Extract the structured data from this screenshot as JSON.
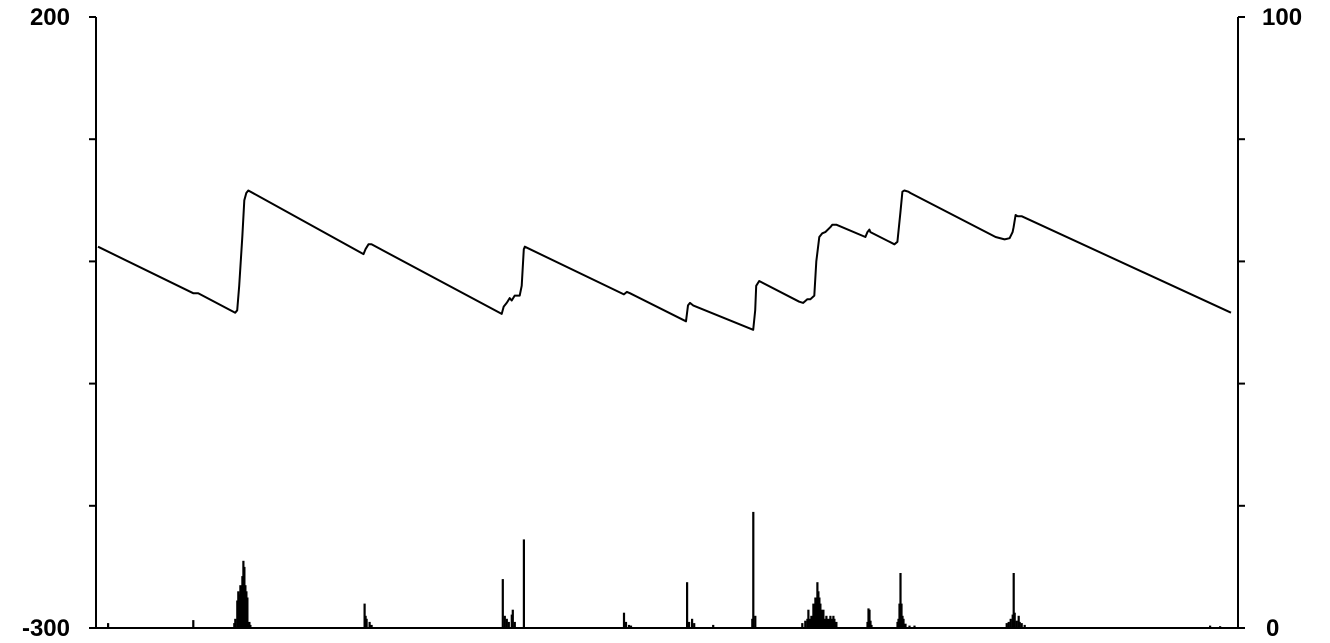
{
  "chart_data": {
    "type": "line",
    "grid": false,
    "legend": "none",
    "title": "",
    "xlabel": "",
    "x_ticks_shown": false,
    "left_axis": {
      "ylim": [
        -300,
        200
      ],
      "ticks": [
        -300,
        -200,
        -100,
        0,
        100,
        200
      ],
      "labels_shown": [
        "-300",
        "200"
      ]
    },
    "right_axis": {
      "ylim": [
        0,
        100
      ],
      "ticks": [
        0,
        20,
        40,
        60,
        80,
        100
      ],
      "labels_shown": [
        "0",
        "100"
      ]
    },
    "xlim": [
      0,
      1131
    ],
    "series": [
      {
        "axis": "left",
        "style": "line",
        "color": "#000000",
        "points": [
          [
            0,
            12
          ],
          [
            95,
            -26
          ],
          [
            100,
            -26
          ],
          [
            137,
            -42
          ],
          [
            139,
            -40
          ],
          [
            141,
            -20
          ],
          [
            144,
            20
          ],
          [
            146,
            50
          ],
          [
            148,
            56
          ],
          [
            150,
            58
          ],
          [
            265,
            6
          ],
          [
            267,
            10
          ],
          [
            270,
            14
          ],
          [
            273,
            14
          ],
          [
            403,
            -43
          ],
          [
            405,
            -37
          ],
          [
            408,
            -34
          ],
          [
            411,
            -30
          ],
          [
            413,
            -32
          ],
          [
            416,
            -28
          ],
          [
            419,
            -28
          ],
          [
            421,
            -28
          ],
          [
            423,
            -20
          ],
          [
            425,
            10
          ],
          [
            426,
            12
          ],
          [
            525,
            -27
          ],
          [
            528,
            -25
          ],
          [
            531,
            -26
          ],
          [
            587,
            -49
          ],
          [
            589,
            -36
          ],
          [
            591,
            -34
          ],
          [
            594,
            -36
          ],
          [
            654,
            -56
          ],
          [
            656,
            -40
          ],
          [
            657,
            -20
          ],
          [
            660,
            -16
          ],
          [
            700,
            -33
          ],
          [
            704,
            -34
          ],
          [
            708,
            -31
          ],
          [
            711,
            -31
          ],
          [
            715,
            -28
          ],
          [
            717,
            0
          ],
          [
            720,
            20
          ],
          [
            723,
            23
          ],
          [
            726,
            24
          ],
          [
            731,
            28
          ],
          [
            733,
            30
          ],
          [
            737,
            30
          ],
          [
            766,
            20
          ],
          [
            768,
            24
          ],
          [
            770,
            26
          ],
          [
            771,
            24
          ],
          [
            795,
            14
          ],
          [
            798,
            16
          ],
          [
            801,
            40
          ],
          [
            803,
            57
          ],
          [
            805,
            58
          ],
          [
            809,
            57
          ],
          [
            811,
            56
          ],
          [
            896,
            20
          ],
          [
            905,
            18
          ],
          [
            910,
            19
          ],
          [
            913,
            24
          ],
          [
            914,
            28
          ],
          [
            916,
            38
          ],
          [
            918,
            37
          ],
          [
            922,
            37
          ],
          [
            1131,
            -42
          ]
        ]
      },
      {
        "axis": "right",
        "style": "bars",
        "color": "#000000",
        "values": [
          [
            10,
            0.8
          ],
          [
            95,
            1.3
          ],
          [
            136,
            0.8
          ],
          [
            137,
            1.5
          ],
          [
            139,
            4.5
          ],
          [
            140,
            6
          ],
          [
            141,
            5.5
          ],
          [
            142,
            7
          ],
          [
            143,
            6.5
          ],
          [
            144,
            8.5
          ],
          [
            145,
            11
          ],
          [
            146,
            10
          ],
          [
            147,
            7
          ],
          [
            148,
            6
          ],
          [
            149,
            5
          ],
          [
            151,
            1
          ],
          [
            152,
            0.5
          ],
          [
            266,
            4
          ],
          [
            267,
            2
          ],
          [
            268,
            1.5
          ],
          [
            271,
            1
          ],
          [
            273,
            0.5
          ],
          [
            404,
            8
          ],
          [
            406,
            2
          ],
          [
            408,
            1.5
          ],
          [
            410,
            1
          ],
          [
            413,
            2.2
          ],
          [
            414,
            3
          ],
          [
            416,
            1
          ],
          [
            425,
            14.5
          ],
          [
            525,
            2.5
          ],
          [
            527,
            1
          ],
          [
            530,
            0.5
          ],
          [
            532,
            0.4
          ],
          [
            588,
            7.5
          ],
          [
            590,
            1
          ],
          [
            593,
            1.5
          ],
          [
            595,
            0.8
          ],
          [
            614,
            0.5
          ],
          [
            653,
            1.5
          ],
          [
            654,
            19
          ],
          [
            656,
            2
          ],
          [
            703,
            0.8
          ],
          [
            706,
            1.2
          ],
          [
            708,
            1.5
          ],
          [
            709,
            3
          ],
          [
            710,
            1.5
          ],
          [
            712,
            2
          ],
          [
            714,
            4
          ],
          [
            716,
            5
          ],
          [
            717,
            3
          ],
          [
            718,
            7.5
          ],
          [
            719,
            6
          ],
          [
            720,
            5
          ],
          [
            721,
            4
          ],
          [
            722,
            3
          ],
          [
            723,
            2.5
          ],
          [
            724,
            3
          ],
          [
            725,
            1.5
          ],
          [
            727,
            2
          ],
          [
            729,
            1.5
          ],
          [
            731,
            2
          ],
          [
            732,
            1.5
          ],
          [
            734,
            2
          ],
          [
            735,
            1.5
          ],
          [
            737,
            1
          ],
          [
            768,
            1
          ],
          [
            769,
            3.2
          ],
          [
            770,
            3
          ],
          [
            771,
            1.2
          ],
          [
            772,
            0.5
          ],
          [
            798,
            1
          ],
          [
            799,
            1.5
          ],
          [
            800,
            4
          ],
          [
            801,
            9
          ],
          [
            802,
            4
          ],
          [
            803,
            2
          ],
          [
            804,
            1.5
          ],
          [
            806,
            0.7
          ],
          [
            810,
            0.4
          ],
          [
            815,
            0.4
          ],
          [
            907,
            0.8
          ],
          [
            909,
            1
          ],
          [
            911,
            1.5
          ],
          [
            913,
            2.2
          ],
          [
            914,
            9
          ],
          [
            915,
            2.5
          ],
          [
            917,
            1.2
          ],
          [
            919,
            2
          ],
          [
            920,
            1
          ],
          [
            922,
            0.8
          ],
          [
            925,
            0.5
          ],
          [
            1110,
            0.4
          ],
          [
            1120,
            0.3
          ]
        ]
      }
    ]
  },
  "colors": {
    "line": "#000000",
    "background": "#ffffff"
  }
}
